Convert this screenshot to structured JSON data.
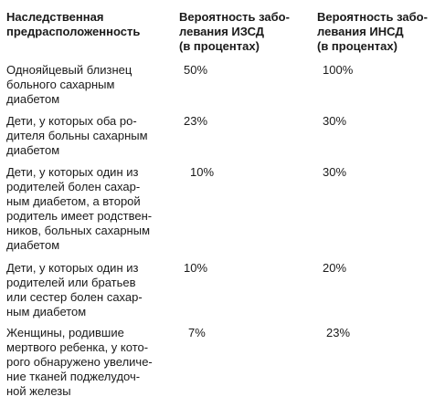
{
  "table": {
    "headers": {
      "condition": "Наследственная\nпредрасположенность",
      "iddm": "Вероятность забо-\nлевания ИЗСД\n(в процентах)",
      "niddm": "Вероятность забо-\nлевания ИНСД\n(в процентах)"
    },
    "rows": [
      {
        "condition": "Однояйцевый близнец\nбольного сахарным\nдиабетом",
        "iddm": "50%",
        "niddm": "100%"
      },
      {
        "condition": "Дети, у которых оба ро-\nдителя больны сахарным\nдиабетом",
        "iddm": "23%",
        "niddm": "30%"
      },
      {
        "condition": "Дети, у которых один из\nродителей болен сахар-\nным диабетом, а второй\nродитель имеет родствен-\nников, больных сахарным\nдиабетом",
        "iddm": "10%",
        "niddm": "30%"
      },
      {
        "condition": "Дети, у которых один из\nродителей или братьев\nили сестер болен сахар-\nным диабетом",
        "iddm": "10%",
        "niddm": "20%"
      },
      {
        "condition": "Женщины, родившие\nмертвого ребенка, у кото-\nрого обнаружено увеличе-\nние тканей поджелудоч-\nной железы",
        "iddm": "7%",
        "niddm": "23%"
      }
    ]
  }
}
